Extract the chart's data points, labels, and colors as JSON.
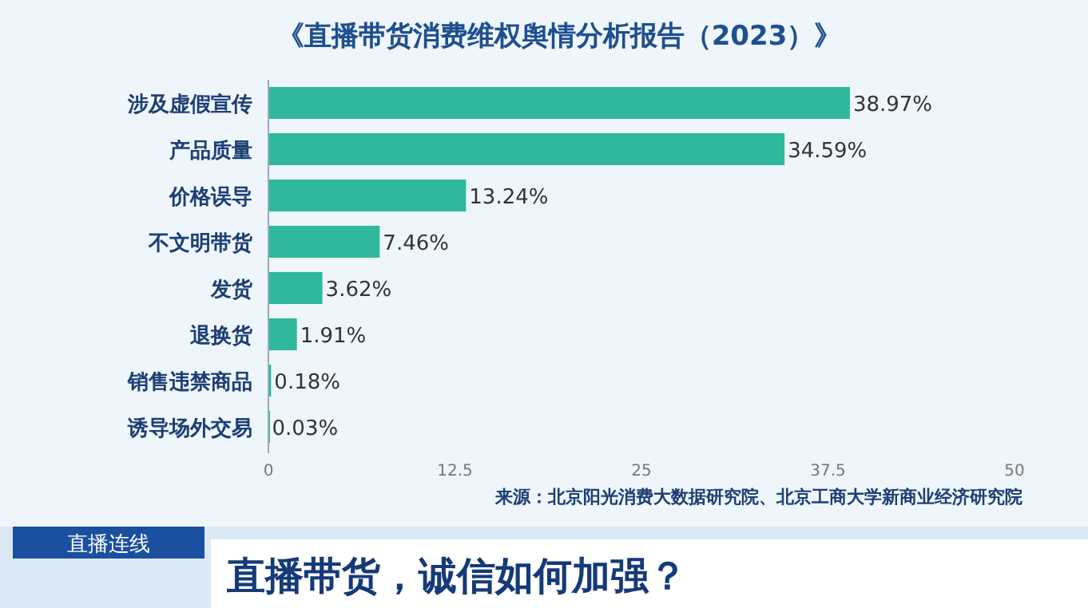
{
  "chart_data": {
    "type": "bar",
    "orientation": "horizontal",
    "title": "《直播带货消费维权舆情分析报告（2023）》",
    "categories": [
      "涉及虚假宣传",
      "产品质量",
      "价格误导",
      "不文明带货",
      "发货",
      "退换货",
      "销售违禁商品",
      "诱导场外交易"
    ],
    "values": [
      38.97,
      34.59,
      13.24,
      7.46,
      3.62,
      1.91,
      0.18,
      0.03
    ],
    "value_labels": [
      "38.97%",
      "34.59%",
      "13.24%",
      "7.46%",
      "3.62%",
      "1.91%",
      "0.18%",
      "0.03%"
    ],
    "color": "#2fb89c",
    "xlim": [
      0,
      50
    ],
    "xticks": [
      0,
      12.5,
      25,
      37.5,
      50
    ],
    "annotations": [
      "来源：北京阳光消费大数据研究院、北京工商大学新商业经济研究院",
      "直播连线",
      "直播带货，诚信如何加强？"
    ]
  }
}
